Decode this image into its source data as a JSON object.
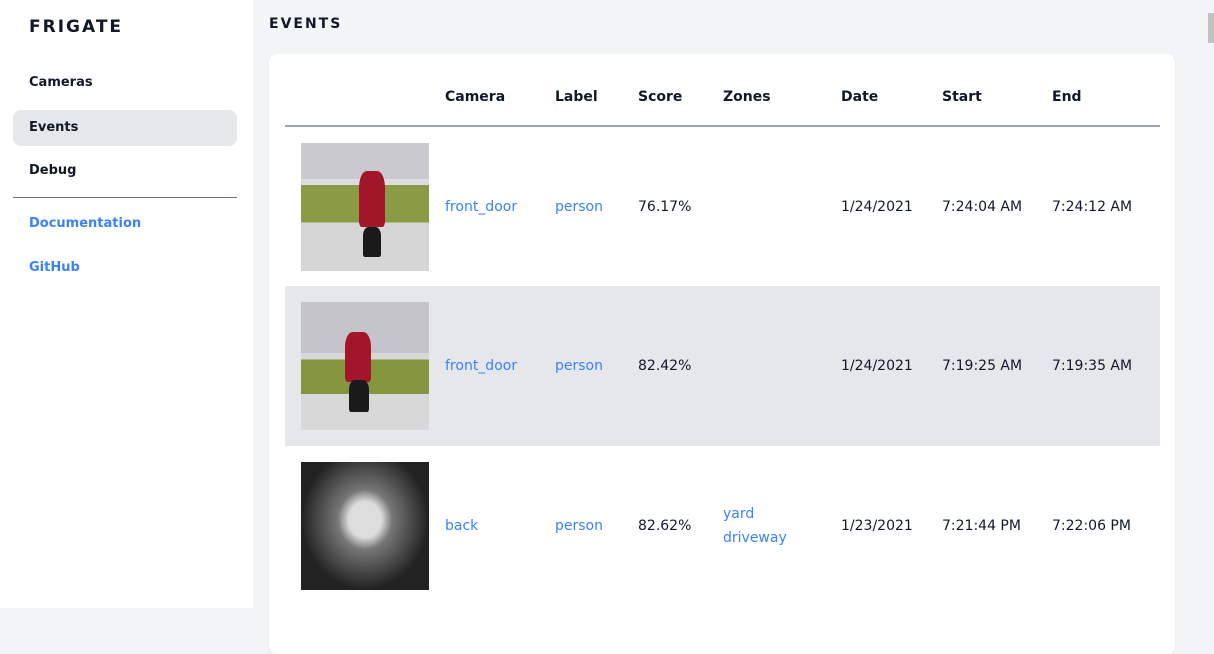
{
  "sidebar": {
    "brand": "FRIGATE",
    "items": [
      {
        "label": "Cameras"
      },
      {
        "label": "Events",
        "active": true
      },
      {
        "label": "Debug"
      }
    ],
    "links": [
      {
        "label": "Documentation"
      },
      {
        "label": "GitHub"
      }
    ]
  },
  "page": {
    "title": "EVENTS"
  },
  "table": {
    "headers": [
      "",
      "Camera",
      "Label",
      "Score",
      "Zones",
      "Date",
      "Start",
      "End"
    ],
    "rows": [
      {
        "camera": "front_door",
        "label": "person",
        "score": "76.17%",
        "zones": [
          "",
          ""
        ],
        "date": "1/24/2021",
        "start": "7:24:04 AM",
        "end": "7:24:12 AM"
      },
      {
        "camera": "front_door",
        "label": "person",
        "score": "82.42%",
        "zones": [
          "",
          ""
        ],
        "date": "1/24/2021",
        "start": "7:19:25 AM",
        "end": "7:19:35 AM"
      },
      {
        "camera": "back",
        "label": "person",
        "score": "82.62%",
        "zones": [
          "yard",
          "driveway"
        ],
        "date": "1/23/2021",
        "start": "7:21:44 PM",
        "end": "7:22:06 PM"
      }
    ]
  },
  "colors": {
    "accent": "#3b82f6",
    "active_bg": "#e5e7eb",
    "page_bg": "#f3f4f6"
  }
}
